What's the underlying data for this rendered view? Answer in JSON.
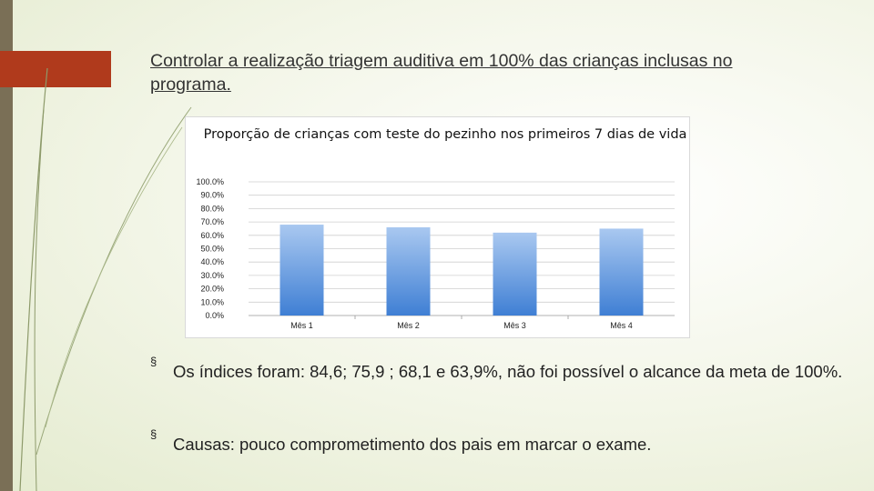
{
  "slide": {
    "heading": "Controlar a realização triagem auditiva em 100% das crianças inclusas no programa.",
    "bullets": [
      "Os índices foram: 84,6; 75,9 ; 68,1 e 63,9%, não foi possível o alcance da meta de 100%.",
      "Causas: pouco comprometimento dos pais em marcar o exame."
    ],
    "bullet_marker": "§"
  },
  "chart_data": {
    "type": "bar",
    "title": "Proporção de crianças com teste do pezinho nos primeiros 7 dias de vida",
    "categories": [
      "Mês 1",
      "Mês 2",
      "Mês 3",
      "Mês 4"
    ],
    "values": [
      68.0,
      66.0,
      62.0,
      65.0
    ],
    "yticks": [
      "0.0%",
      "10.0%",
      "20.0%",
      "30.0%",
      "40.0%",
      "50.0%",
      "60.0%",
      "70.0%",
      "80.0%",
      "90.0%",
      "100.0%"
    ],
    "ylim": [
      0,
      100
    ],
    "grid": true,
    "legend": "none",
    "bar_color_top": "#a9c8f0",
    "bar_color_bottom": "#3f7fd4"
  }
}
